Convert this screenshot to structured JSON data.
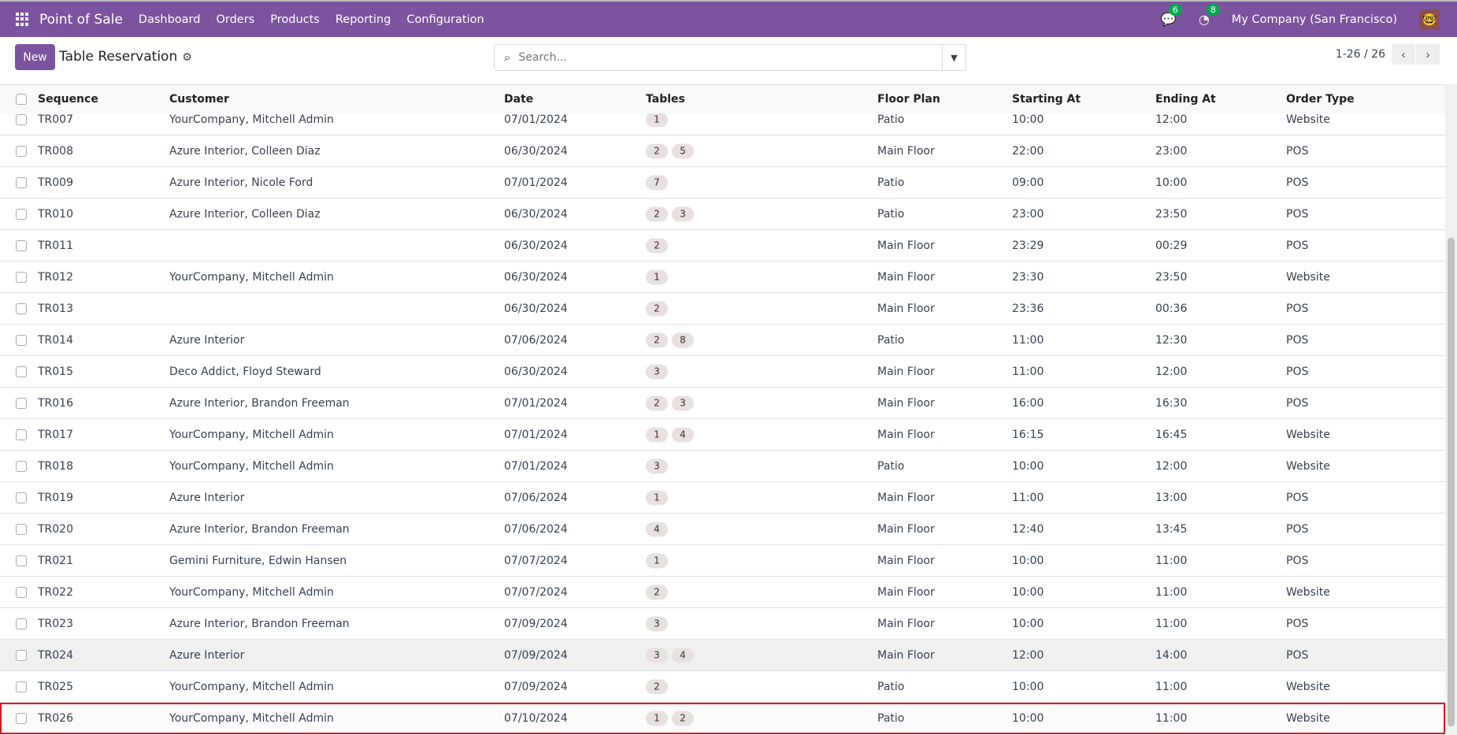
{
  "nav": {
    "app": "Point of Sale",
    "menu": [
      "Dashboard",
      "Orders",
      "Products",
      "Reporting",
      "Configuration"
    ],
    "messages_count": "6",
    "activities_count": "8",
    "company": "My Company (San Francisco)",
    "accent": "#7c539e"
  },
  "control": {
    "new_label": "New",
    "title": "Table Reservation",
    "search_placeholder": "Search...",
    "pager": "1-26 / 26"
  },
  "columns": [
    "Sequence",
    "Customer",
    "Date",
    "Tables",
    "Floor Plan",
    "Starting At",
    "Ending At",
    "Order Type"
  ],
  "rows": [
    {
      "seq": "TR007",
      "customer": "YourCompany, Mitchell Admin",
      "date": "07/01/2024",
      "tables": [
        "1"
      ],
      "floor": "Patio",
      "start": "10:00",
      "end": "12:00",
      "type": "Website"
    },
    {
      "seq": "TR008",
      "customer": "Azure Interior, Colleen Diaz",
      "date": "06/30/2024",
      "tables": [
        "2",
        "5"
      ],
      "floor": "Main Floor",
      "start": "22:00",
      "end": "23:00",
      "type": "POS"
    },
    {
      "seq": "TR009",
      "customer": "Azure Interior, Nicole Ford",
      "date": "07/01/2024",
      "tables": [
        "7"
      ],
      "floor": "Patio",
      "start": "09:00",
      "end": "10:00",
      "type": "POS"
    },
    {
      "seq": "TR010",
      "customer": "Azure Interior, Colleen Diaz",
      "date": "06/30/2024",
      "tables": [
        "2",
        "3"
      ],
      "floor": "Patio",
      "start": "23:00",
      "end": "23:50",
      "type": "POS"
    },
    {
      "seq": "TR011",
      "customer": "",
      "date": "06/30/2024",
      "tables": [
        "2"
      ],
      "floor": "Main Floor",
      "start": "23:29",
      "end": "00:29",
      "type": "POS"
    },
    {
      "seq": "TR012",
      "customer": "YourCompany, Mitchell Admin",
      "date": "06/30/2024",
      "tables": [
        "1"
      ],
      "floor": "Main Floor",
      "start": "23:30",
      "end": "23:50",
      "type": "Website"
    },
    {
      "seq": "TR013",
      "customer": "",
      "date": "06/30/2024",
      "tables": [
        "2"
      ],
      "floor": "Main Floor",
      "start": "23:36",
      "end": "00:36",
      "type": "POS"
    },
    {
      "seq": "TR014",
      "customer": "Azure Interior",
      "date": "07/06/2024",
      "tables": [
        "2",
        "8"
      ],
      "floor": "Patio",
      "start": "11:00",
      "end": "12:30",
      "type": "POS"
    },
    {
      "seq": "TR015",
      "customer": "Deco Addict, Floyd Steward",
      "date": "06/30/2024",
      "tables": [
        "3"
      ],
      "floor": "Main Floor",
      "start": "11:00",
      "end": "12:00",
      "type": "POS"
    },
    {
      "seq": "TR016",
      "customer": "Azure Interior, Brandon Freeman",
      "date": "07/01/2024",
      "tables": [
        "2",
        "3"
      ],
      "floor": "Main Floor",
      "start": "16:00",
      "end": "16:30",
      "type": "POS"
    },
    {
      "seq": "TR017",
      "customer": "YourCompany, Mitchell Admin",
      "date": "07/01/2024",
      "tables": [
        "1",
        "4"
      ],
      "floor": "Main Floor",
      "start": "16:15",
      "end": "16:45",
      "type": "Website"
    },
    {
      "seq": "TR018",
      "customer": "YourCompany, Mitchell Admin",
      "date": "07/01/2024",
      "tables": [
        "3"
      ],
      "floor": "Patio",
      "start": "10:00",
      "end": "12:00",
      "type": "Website"
    },
    {
      "seq": "TR019",
      "customer": "Azure Interior",
      "date": "07/06/2024",
      "tables": [
        "1"
      ],
      "floor": "Main Floor",
      "start": "11:00",
      "end": "13:00",
      "type": "POS"
    },
    {
      "seq": "TR020",
      "customer": "Azure Interior, Brandon Freeman",
      "date": "07/06/2024",
      "tables": [
        "4"
      ],
      "floor": "Main Floor",
      "start": "12:40",
      "end": "13:45",
      "type": "POS"
    },
    {
      "seq": "TR021",
      "customer": "Gemini Furniture, Edwin Hansen",
      "date": "07/07/2024",
      "tables": [
        "1"
      ],
      "floor": "Main Floor",
      "start": "10:00",
      "end": "11:00",
      "type": "POS"
    },
    {
      "seq": "TR022",
      "customer": "YourCompany, Mitchell Admin",
      "date": "07/07/2024",
      "tables": [
        "2"
      ],
      "floor": "Main Floor",
      "start": "10:00",
      "end": "11:00",
      "type": "Website"
    },
    {
      "seq": "TR023",
      "customer": "Azure Interior, Brandon Freeman",
      "date": "07/09/2024",
      "tables": [
        "3"
      ],
      "floor": "Main Floor",
      "start": "10:00",
      "end": "11:00",
      "type": "POS"
    },
    {
      "seq": "TR024",
      "customer": "Azure Interior",
      "date": "07/09/2024",
      "tables": [
        "3",
        "4"
      ],
      "floor": "Main Floor",
      "start": "12:00",
      "end": "14:00",
      "type": "POS",
      "hover": true
    },
    {
      "seq": "TR025",
      "customer": "YourCompany, Mitchell Admin",
      "date": "07/09/2024",
      "tables": [
        "2"
      ],
      "floor": "Patio",
      "start": "10:00",
      "end": "11:00",
      "type": "Website"
    },
    {
      "seq": "TR026",
      "customer": "YourCompany, Mitchell Admin",
      "date": "07/10/2024",
      "tables": [
        "1",
        "2"
      ],
      "floor": "Patio",
      "start": "10:00",
      "end": "11:00",
      "type": "Website",
      "highlighted": true
    }
  ]
}
